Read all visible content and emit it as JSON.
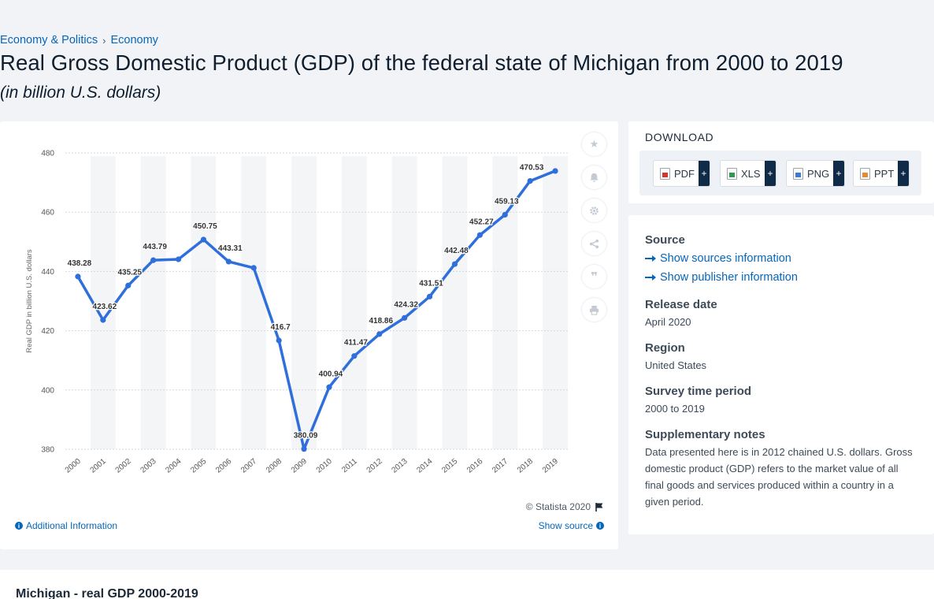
{
  "breadcrumb": [
    "Economy & Politics",
    "Economy"
  ],
  "breadcrumb_sep": "›",
  "title": "Real Gross Domestic Product (GDP) of the federal state of Michigan from 2000 to 2019",
  "subtitle": "(in billion U.S. dollars)",
  "side_icons": [
    "star-icon",
    "bell-icon",
    "gear-icon",
    "share-icon",
    "quote-icon",
    "print-icon"
  ],
  "copyright": "© Statista 2020",
  "additional_info": "Additional Information",
  "show_source": "Show source",
  "download": {
    "title": "DOWNLOAD",
    "buttons": [
      {
        "label": "PDF",
        "icon": "pdf-file-icon"
      },
      {
        "label": "XLS",
        "icon": "xls-file-icon"
      },
      {
        "label": "PNG",
        "icon": "png-file-icon"
      },
      {
        "label": "PPT",
        "icon": "ppt-file-icon"
      }
    ],
    "plus": "+"
  },
  "meta": {
    "source_heading": "Source",
    "show_sources": "Show sources information",
    "show_publisher": "Show publisher information",
    "release_heading": "Release date",
    "release_value": "April 2020",
    "region_heading": "Region",
    "region_value": "United States",
    "survey_heading": "Survey time period",
    "survey_value": "2000 to 2019",
    "notes_heading": "Supplementary notes",
    "notes_value": "Data presented here is in 2012 chained U.S. dollars. Gross domestic product (GDP) refers to the market value of all final goods and services produced within a country in a given period."
  },
  "bottom_title": "Michigan - real GDP 2000-2019",
  "colors": {
    "line": "#2f6fdb",
    "accent": "#0666b8",
    "band": "#f4f5f7"
  },
  "chart_data": {
    "type": "line",
    "title": "",
    "xlabel": "",
    "ylabel": "Real GDP in billion U.S. dollars",
    "ylim": [
      380,
      480
    ],
    "yticks": [
      380,
      400,
      420,
      440,
      460,
      480
    ],
    "grid": true,
    "categories": [
      "2000",
      "2001",
      "2002",
      "2003",
      "2004",
      "2005",
      "2006",
      "2007",
      "2008",
      "2009",
      "2010",
      "2011",
      "2012",
      "2013",
      "2014",
      "2015",
      "2016",
      "2017",
      "2018",
      "2019"
    ],
    "series": [
      {
        "values": [
          438.28,
          423.62,
          435.25,
          443.79,
          444.1,
          450.75,
          443.31,
          441.2,
          416.7,
          380.09,
          400.94,
          411.47,
          418.86,
          424.32,
          431.51,
          442.48,
          452.27,
          459.13,
          470.53,
          473.9
        ]
      }
    ],
    "labels": [
      "438.28",
      "423.62",
      "435.25",
      "443.79",
      "",
      "450.75",
      "443.31",
      "",
      "416.7",
      "380.09",
      "400.94",
      "411.47",
      "418.86",
      "424.32",
      "431.51",
      "442.48",
      "452.27",
      "459.13",
      "470.53",
      ""
    ]
  }
}
